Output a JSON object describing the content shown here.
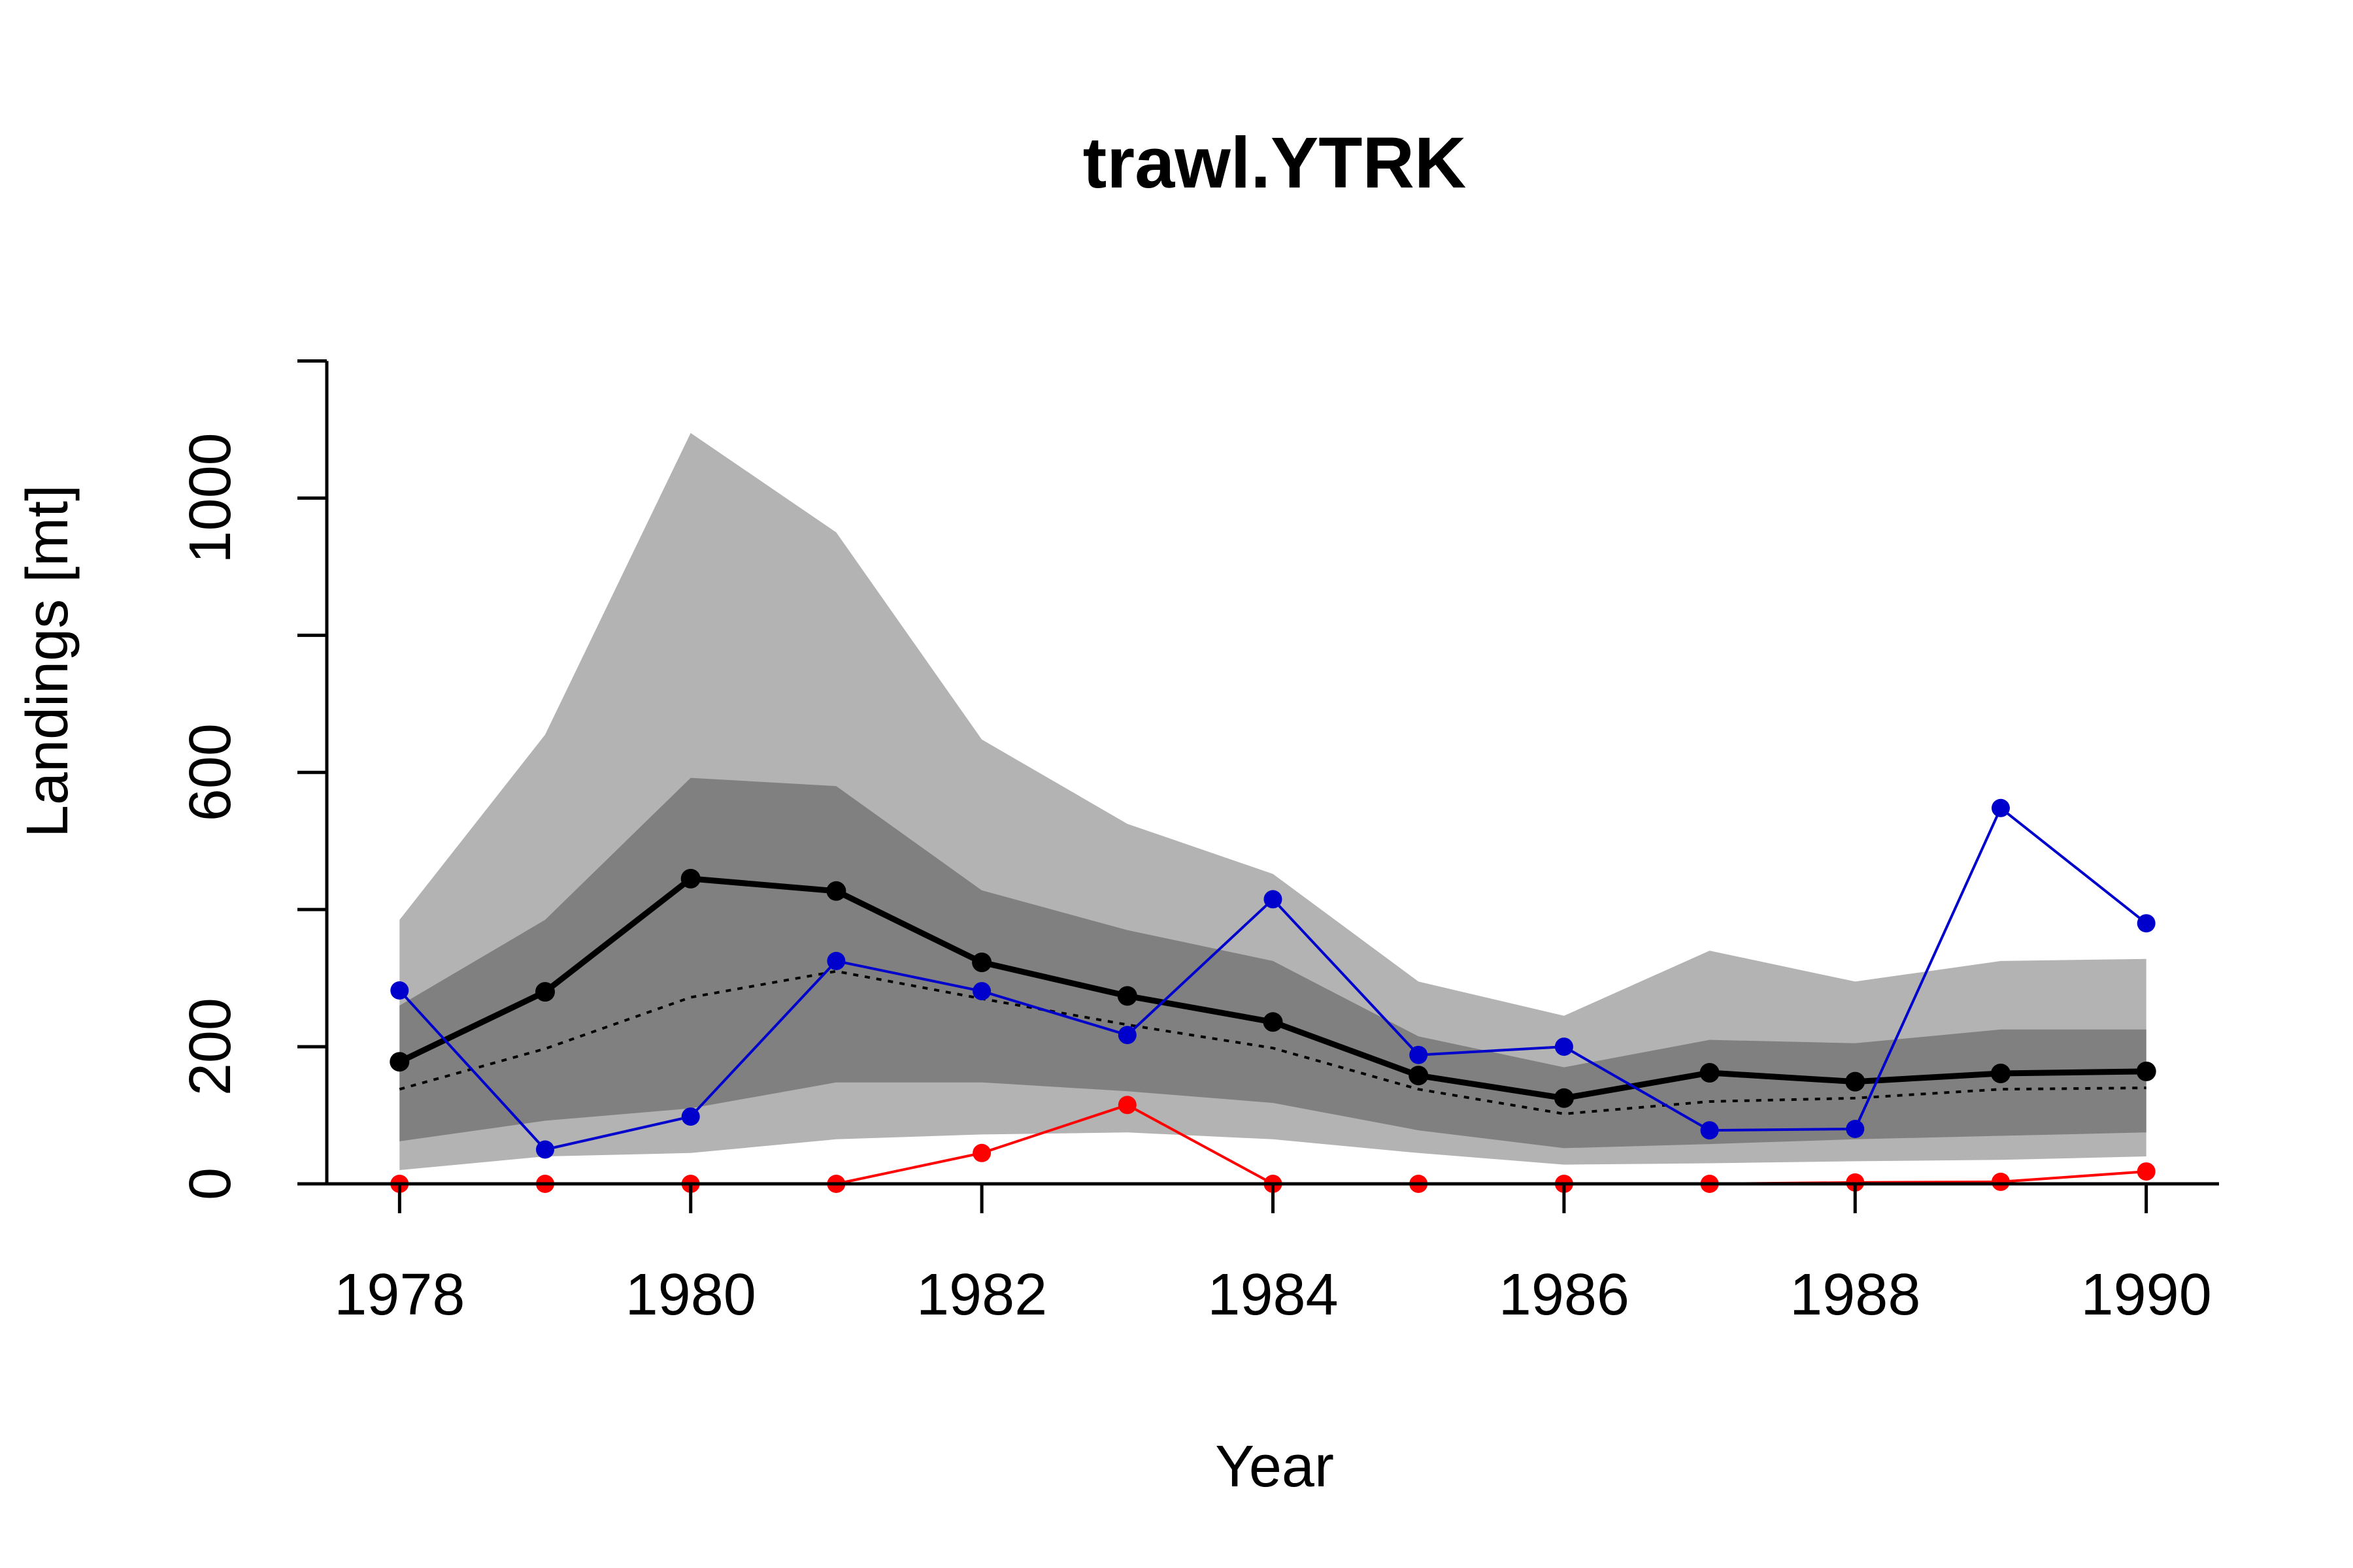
{
  "chart_data": {
    "type": "line",
    "title": "trawl.YTRK",
    "xlabel": "Year",
    "ylabel": "Landings [mt]",
    "x": [
      1978,
      1979,
      1980,
      1981,
      1982,
      1983,
      1984,
      1985,
      1986,
      1987,
      1988,
      1989,
      1990
    ],
    "xlim": [
      1977.5,
      1990.5
    ],
    "ylim": [
      0,
      1250
    ],
    "x_ticks": [
      1978,
      1980,
      1982,
      1984,
      1986,
      1988,
      1990
    ],
    "y_ticks": [
      0,
      200,
      400,
      600,
      800,
      1000,
      1200
    ],
    "y_tick_labels": [
      "0",
      "200",
      "",
      "600",
      "",
      "1000",
      ""
    ],
    "grid": false,
    "bands": [
      {
        "fill": "#b3b3b3",
        "lower": [
          20,
          40,
          45,
          65,
          72,
          75,
          65,
          45,
          28,
          30,
          33,
          35,
          40
        ],
        "upper": [
          385,
          655,
          1095,
          950,
          648,
          525,
          452,
          295,
          245,
          340,
          295,
          325,
          328
        ]
      },
      {
        "fill": "#808080",
        "lower": [
          62,
          92,
          110,
          148,
          148,
          135,
          118,
          78,
          52,
          58,
          65,
          70,
          75
        ],
        "upper": [
          260,
          385,
          592,
          580,
          428,
          370,
          325,
          215,
          170,
          210,
          205,
          225,
          225
        ]
      }
    ],
    "series": [
      {
        "role": "median",
        "color": "#000000",
        "values": [
          178,
          280,
          445,
          427,
          323,
          274,
          236,
          158,
          125,
          162,
          149,
          161,
          164
        ],
        "markers": true,
        "line_style": "solid",
        "line_weight": "thick"
      },
      {
        "role": "dotted reference",
        "color": "#000000",
        "values": [
          138,
          197,
          272,
          310,
          270,
          232,
          198,
          138,
          102,
          120,
          125,
          138,
          140
        ],
        "markers": false,
        "line_style": "dotted",
        "line_weight": "thin"
      },
      {
        "role": "blue observations",
        "color": "#0000cc",
        "values": [
          282,
          50,
          98,
          325,
          281,
          217,
          415,
          188,
          200,
          78,
          80,
          548,
          380
        ],
        "markers": true,
        "line_style": "solid",
        "line_weight": "thin"
      },
      {
        "role": "red observations",
        "color": "#ff0000",
        "values": [
          0,
          0,
          0,
          0,
          45,
          115,
          0,
          0,
          0,
          0,
          2,
          3,
          18
        ],
        "markers": true,
        "line_style": "solid",
        "line_weight": "thin"
      }
    ]
  }
}
